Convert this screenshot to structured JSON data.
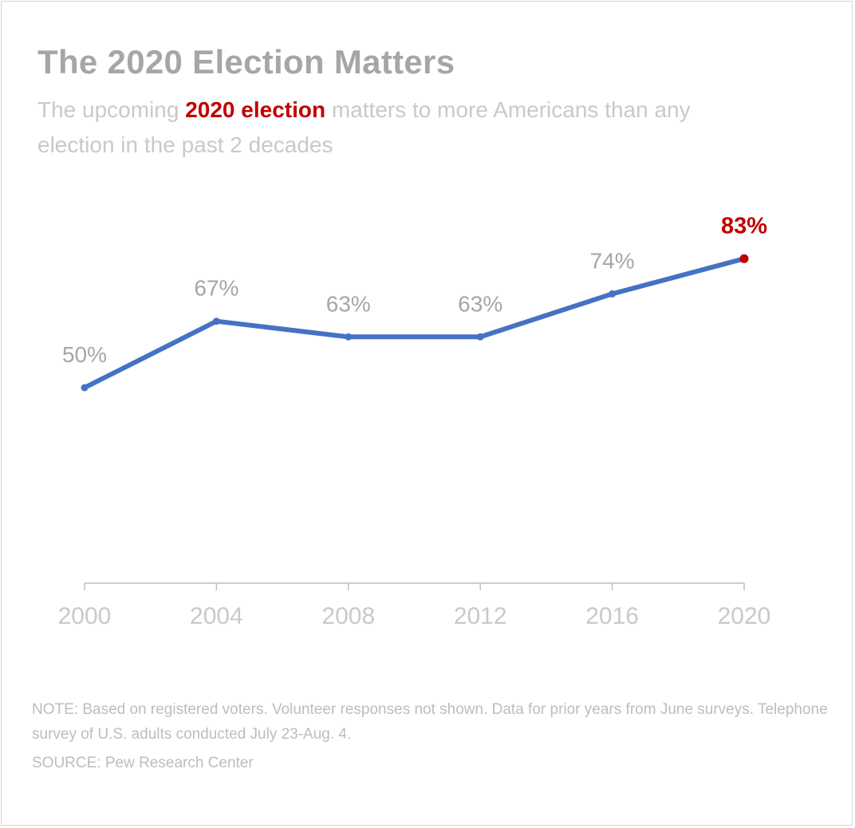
{
  "title_text": "The 2020 Election Matters",
  "subtitle": {
    "before": "The upcoming ",
    "highlight": "2020 election",
    "after": " matters to more Americans than any election in the past 2 decades"
  },
  "notes": {
    "note": "NOTE: Based on registered voters. Volunteer responses not shown. Data for prior years from June surveys. Telephone survey of U.S. adults conducted July 23-Aug. 4.",
    "source": "SOURCE: Pew Research Center"
  },
  "colors": {
    "line": "#4472c4",
    "highlight": "#c00000",
    "label": "#a6a6a6",
    "axis": "#bfbfbf"
  },
  "chart_data": {
    "type": "line",
    "x": [
      "2000",
      "2004",
      "2008",
      "2012",
      "2016",
      "2020"
    ],
    "series": [
      {
        "values": [
          50,
          67,
          63,
          63,
          74,
          83
        ]
      }
    ],
    "data_labels": [
      "50%",
      "67%",
      "63%",
      "63%",
      "74%",
      "83%"
    ],
    "highlight_index": 5,
    "xlabel": "",
    "ylabel": "",
    "grid": false,
    "y_axis_visible": false
  }
}
